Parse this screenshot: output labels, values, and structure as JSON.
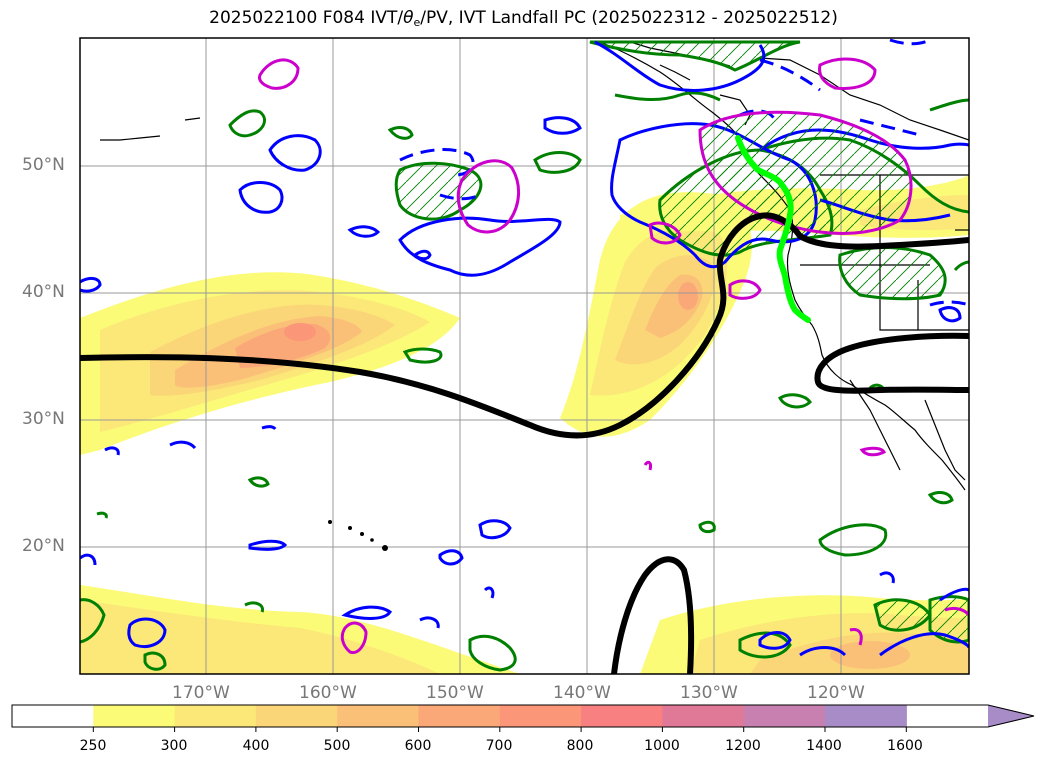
{
  "title": {
    "prefix": "2025022100 F084 IVT/",
    "theta": "θ",
    "theta_sub": "e",
    "suffix": "/PV, IVT Landfall PC (2025022312 - 2025022512)"
  },
  "map": {
    "projection": "equirectangular",
    "lon_range": [
      -180,
      -110
    ],
    "lat_range": [
      10,
      60
    ],
    "gridlines": true
  },
  "lat_labels": [
    "50°N",
    "40°N",
    "30°N",
    "20°N"
  ],
  "lon_labels": [
    "170°W",
    "160°W",
    "150°W",
    "140°W",
    "130°W",
    "120°W"
  ],
  "colorbar": {
    "ticks": [
      "250",
      "300",
      "400",
      "500",
      "600",
      "700",
      "800",
      "1000",
      "1200",
      "1400",
      "1600"
    ],
    "colors": [
      "#ffffff",
      "#fbfb78",
      "#fbe878",
      "#fbd678",
      "#fbc078",
      "#fba878",
      "#fb9678",
      "#f88080",
      "#e07898",
      "#c880b0",
      "#a88cc8"
    ],
    "extend": "max"
  },
  "colors": {
    "ivt_contour_solid": "#0000ff",
    "pv_contour": "#008000",
    "theta_contour": "#cc00cc",
    "landfall_line": "#00ff00",
    "pc_contour": "#000000"
  }
}
